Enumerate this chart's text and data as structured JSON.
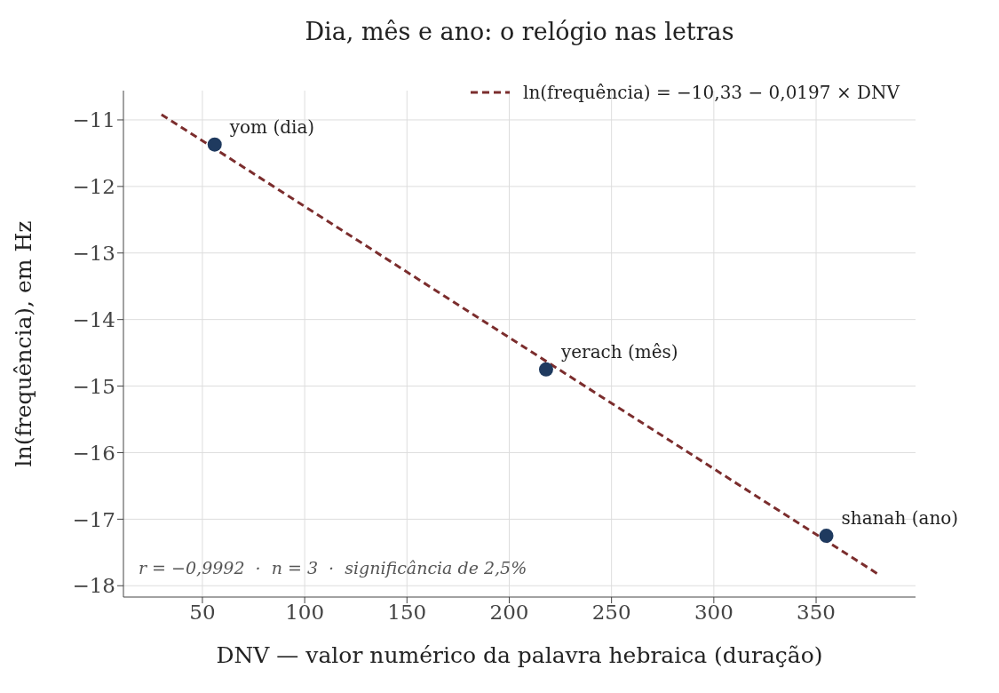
{
  "chart_data": {
    "type": "scatter",
    "title": "Dia, mês e ano: o relógio nas letras",
    "xlabel": "DNV — valor numérico da palavra hebraica (duração)",
    "ylabel": "ln(frequência), em Hz",
    "series": [
      {
        "color": "#1f3a5f",
        "marker": "circle",
        "x": [
          56,
          218,
          355
        ],
        "values": [
          -11.37,
          -14.75,
          -17.25
        ]
      },
      {
        "type": "line",
        "name": "ln(frequência) = −10,33 − 0,0197 × DNV",
        "color": "#7b2d2d",
        "line_style": "dashed",
        "marker": "none",
        "x": [
          30,
          380
        ],
        "values": [
          -10.92,
          -17.82
        ]
      }
    ],
    "xlim": [
      11.4,
      398.6
    ],
    "xticks": [
      50,
      100,
      150,
      200,
      250,
      300,
      350
    ],
    "ylim": [
      -18.17,
      -10.56
    ],
    "yticks": [
      -18,
      -17,
      -16,
      -15,
      -14,
      -13,
      -12,
      -11
    ],
    "grid": true,
    "legend": "top right",
    "annotations": [
      {
        "text": "yom (dia)",
        "x": 56,
        "y": -11.37
      },
      {
        "text": "yerach (mês)",
        "x": 218,
        "y": -14.75
      },
      {
        "text": "shanah (ano)",
        "x": 355,
        "y": -17.25
      },
      "r = −0,9992  ·  n = 3  ·  significância de 2,5%"
    ]
  }
}
